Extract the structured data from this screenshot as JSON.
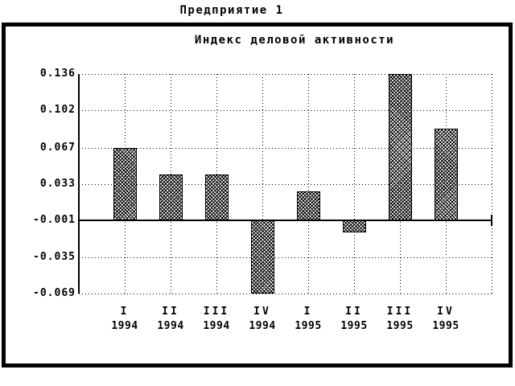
{
  "page_title": "Предприятие 1",
  "chart_data": {
    "type": "bar",
    "title": "Индекс деловой активности",
    "categories": [
      {
        "quarter": "I",
        "year": "1994"
      },
      {
        "quarter": "II",
        "year": "1994"
      },
      {
        "quarter": "III",
        "year": "1994"
      },
      {
        "quarter": "IV",
        "year": "1994"
      },
      {
        "quarter": "I",
        "year": "1995"
      },
      {
        "quarter": "II",
        "year": "1995"
      },
      {
        "quarter": "III",
        "year": "1995"
      },
      {
        "quarter": "IV",
        "year": "1995"
      }
    ],
    "values": [
      0.067,
      0.042,
      0.042,
      -0.069,
      0.026,
      -0.012,
      0.136,
      0.085
    ],
    "yticks": [
      0.136,
      0.102,
      0.067,
      0.033,
      -0.001,
      -0.035,
      -0.069
    ],
    "ylim": [
      -0.069,
      0.136
    ],
    "baseline": -0.001,
    "ytick_decimals": 3,
    "grid": "dotted",
    "legend": "none",
    "bar_fill": "crosshatch",
    "colors": {
      "foreground": "#000000",
      "background": "#ffffff"
    }
  }
}
